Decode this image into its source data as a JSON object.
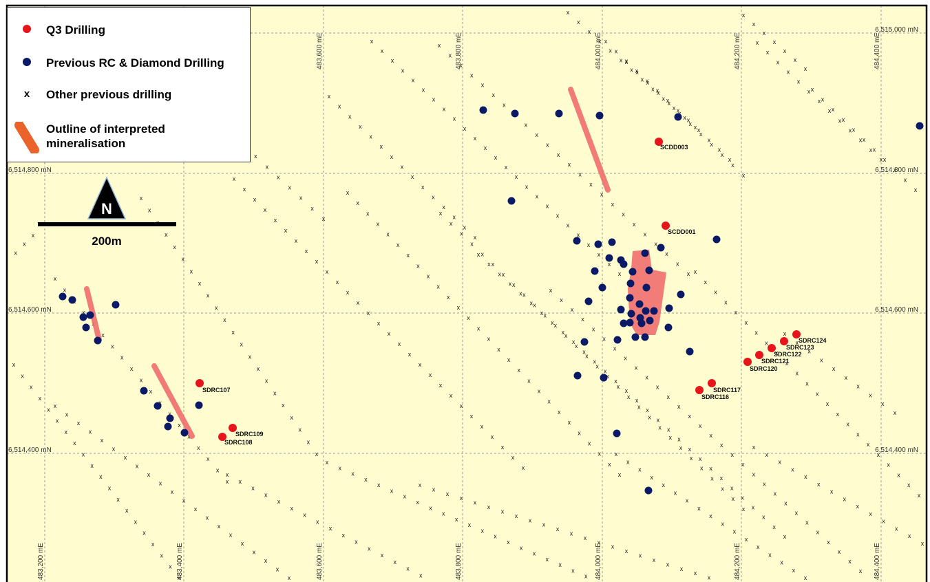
{
  "colors": {
    "background": "#fffdd0",
    "frame": "#000000",
    "grid": "#9a9a9a",
    "q3_drilling": "#e8141b",
    "previous_rc_diamond": "#0a1a66",
    "other_drilling": "#1a1a1a",
    "mineralisation": "#ef6e6e",
    "legend_mineralisation": "#e9632b",
    "north_arrow": "#000000",
    "north_arrow_outline": "#8fb4d9"
  },
  "legend": {
    "items": [
      {
        "symbol": "red-dot",
        "label": "Q3 Drilling"
      },
      {
        "symbol": "navy-dot",
        "label": "Previous RC & Diamond Drilling"
      },
      {
        "symbol": "cross",
        "label": "Other previous drilling"
      },
      {
        "symbol": "orange-bar",
        "label": "Outline of interpreted\n mineralisation"
      }
    ]
  },
  "north_arrow": {
    "letter": "N"
  },
  "scale_bar": {
    "label": "200m"
  },
  "grid": {
    "eastings": [
      "483,200 mE",
      "483,400 mE",
      "483,600 mE",
      "483,800 mE",
      "484,000 mE",
      "484,200 mE",
      "484,400 mE"
    ],
    "northings": [
      "6,515,000 mN",
      "6,514,800 mN",
      "6,514,600 mN",
      "6,514,400 mN"
    ]
  },
  "collar_labels": [
    "SCDD003",
    "SCDD001",
    "SDRC107",
    "SDRC109",
    "SDRC108",
    "SDRC117",
    "SDRC116",
    "SDRC124",
    "SDRC123",
    "SDRC122",
    "SDRC121",
    "SDRC120"
  ]
}
